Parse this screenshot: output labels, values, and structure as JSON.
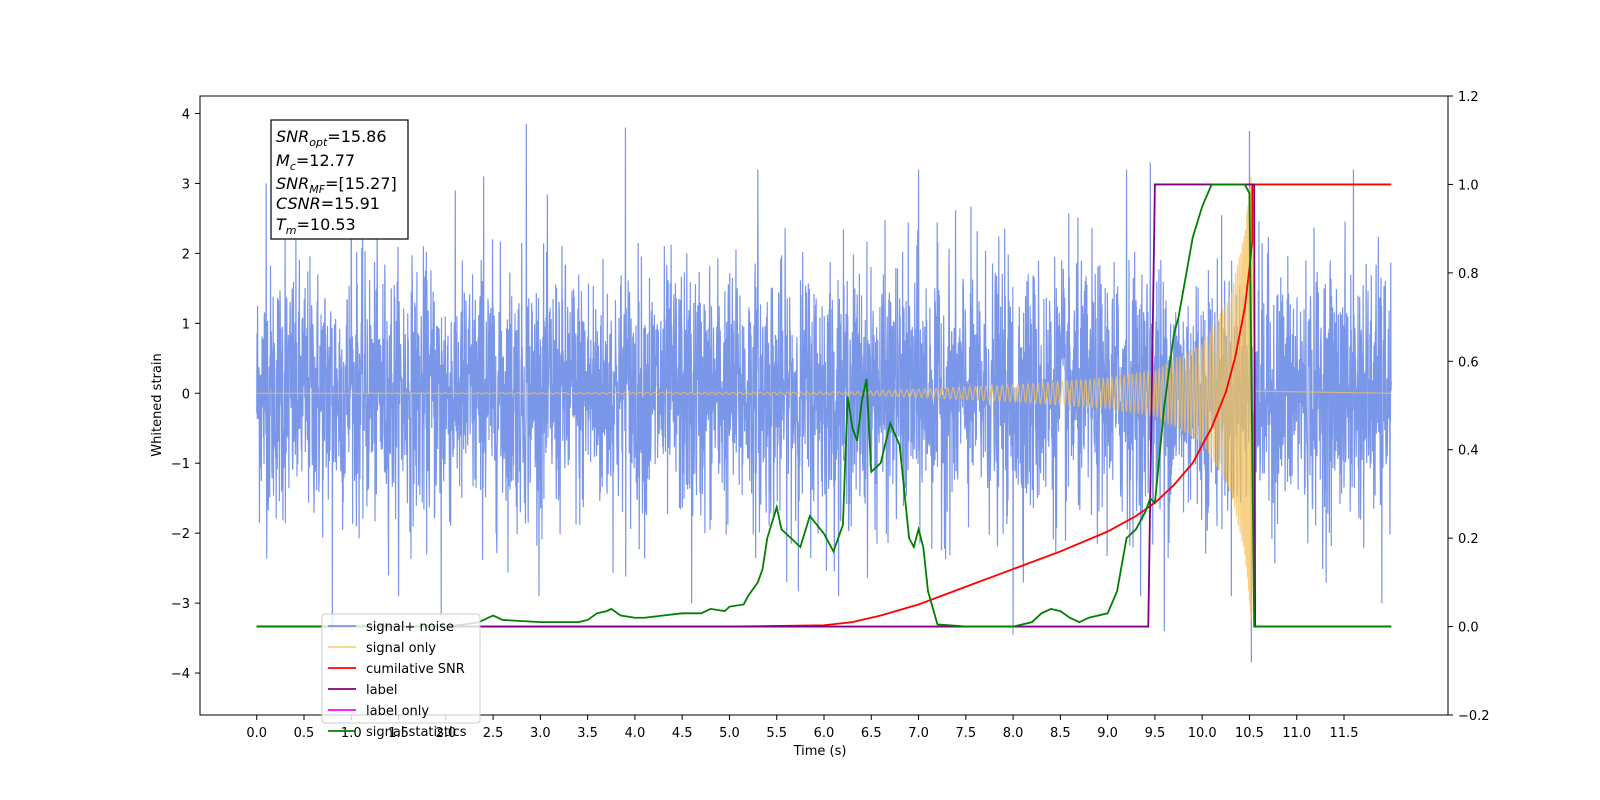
{
  "chart_data": {
    "type": "line",
    "xlabel": "Time (s)",
    "ylabel": "Whitened strain",
    "xlim": [
      -0.6,
      12.6
    ],
    "ylim": [
      -4.6,
      4.25
    ],
    "y2lim": [
      -0.2,
      1.2
    ],
    "x_ticks": [
      0.0,
      0.5,
      1.0,
      1.5,
      2.0,
      2.5,
      3.0,
      3.5,
      4.0,
      4.5,
      5.0,
      5.5,
      6.0,
      6.5,
      7.0,
      7.5,
      8.0,
      8.5,
      9.0,
      9.5,
      10.0,
      10.5,
      11.0,
      11.5
    ],
    "x_tick_labels": [
      "0.0",
      "0.5",
      "1.0",
      "1.5",
      "2.0",
      "2.5",
      "3.0",
      "3.5",
      "4.0",
      "4.5",
      "5.0",
      "5.5",
      "6.0",
      "6.5",
      "7.0",
      "7.5",
      "8.0",
      "8.5",
      "9.0",
      "9.5",
      "10.0",
      "10.5",
      "11.0",
      "11.5"
    ],
    "y_ticks": [
      -4,
      -3,
      -2,
      -1,
      0,
      1,
      2,
      3,
      4
    ],
    "y_tick_labels": [
      "−4",
      "−3",
      "−2",
      "−1",
      "0",
      "1",
      "2",
      "3",
      "4"
    ],
    "y2_ticks": [
      -0.2,
      0.0,
      0.2,
      0.4,
      0.6,
      0.8,
      1.0,
      1.2
    ],
    "y2_tick_labels": [
      "−0.2",
      "0.0",
      "0.2",
      "0.4",
      "0.6",
      "0.8",
      "1.0",
      "1.2"
    ],
    "grid": false,
    "legend_position": "lower-left",
    "annotation": {
      "lines": [
        {
          "sym": "SNR",
          "sub": "opt",
          "value": "=15.86"
        },
        {
          "sym": "M",
          "sub": "c",
          "value": "=12.77"
        },
        {
          "sym": "SNR",
          "sub": "MF",
          "value": "=[15.27]"
        },
        {
          "sym": "CSNR",
          "sub": "",
          "value": "=15.91"
        },
        {
          "sym": "T",
          "sub": "m",
          "value": "=10.53"
        }
      ]
    },
    "series": [
      {
        "name": "signal+ noise",
        "color": "#7a96e8",
        "axis": "left",
        "kind": "noise",
        "x_range": [
          0.0,
          12.0
        ],
        "noise_sd": 0.9,
        "spikes": [
          [
            0.1,
            3.0
          ],
          [
            0.3,
            2.9
          ],
          [
            0.8,
            -3.4
          ],
          [
            1.0,
            3.3
          ],
          [
            1.95,
            -3.2
          ],
          [
            2.4,
            3.1
          ],
          [
            2.85,
            3.85
          ],
          [
            3.9,
            3.8
          ],
          [
            4.6,
            -3.0
          ],
          [
            5.3,
            3.2
          ],
          [
            7.0,
            3.2
          ],
          [
            8.0,
            -3.45
          ],
          [
            9.2,
            3.2
          ],
          [
            9.45,
            3.3
          ],
          [
            9.6,
            -3.4
          ],
          [
            10.5,
            3.75
          ],
          [
            10.52,
            -3.85
          ],
          [
            11.6,
            3.2
          ],
          [
            11.9,
            -3.0
          ]
        ]
      },
      {
        "name": "signal only",
        "color": "#f5c15a",
        "axis": "left",
        "kind": "chirp",
        "x_range": [
          0.0,
          12.0
        ],
        "merger_time": 10.53,
        "amplitude_envelope": [
          [
            0.0,
            0.0
          ],
          [
            6.3,
            0.02
          ],
          [
            7.0,
            0.06
          ],
          [
            8.0,
            0.12
          ],
          [
            9.0,
            0.22
          ],
          [
            9.5,
            0.32
          ],
          [
            10.0,
            0.7
          ],
          [
            10.3,
            1.4
          ],
          [
            10.45,
            2.3
          ],
          [
            10.53,
            3.4
          ],
          [
            10.56,
            0.05
          ],
          [
            12.0,
            0.0
          ]
        ]
      },
      {
        "name": "cumilative SNR",
        "color": "#ff0000",
        "axis": "right",
        "x": [
          0.0,
          5.0,
          6.0,
          6.3,
          6.6,
          7.0,
          7.5,
          8.0,
          8.5,
          9.0,
          9.3,
          9.5,
          9.7,
          9.9,
          10.1,
          10.25,
          10.35,
          10.45,
          10.5,
          10.53,
          10.53,
          12.0
        ],
        "y": [
          0.0,
          0.0,
          0.003,
          0.01,
          0.025,
          0.05,
          0.09,
          0.13,
          0.17,
          0.215,
          0.25,
          0.28,
          0.32,
          0.37,
          0.45,
          0.53,
          0.61,
          0.72,
          0.81,
          0.87,
          1.0,
          1.0
        ]
      },
      {
        "name": "label",
        "color": "#800080",
        "axis": "right",
        "x": [
          0.0,
          9.43,
          9.5,
          10.55,
          10.56,
          12.0
        ],
        "y": [
          0.0,
          0.0,
          1.0,
          1.0,
          0.0,
          0.0
        ]
      },
      {
        "name": "label only",
        "color": "#ff00ff",
        "axis": "right",
        "x": [],
        "y": []
      },
      {
        "name": "signal statistics",
        "color": "#008000",
        "axis": "right",
        "x": [
          0.0,
          0.5,
          1.0,
          1.5,
          2.0,
          2.2,
          2.35,
          2.45,
          2.5,
          2.6,
          3.0,
          3.2,
          3.4,
          3.5,
          3.6,
          3.7,
          3.75,
          3.85,
          4.0,
          4.1,
          4.3,
          4.5,
          4.7,
          4.8,
          4.95,
          5.0,
          5.15,
          5.2,
          5.3,
          5.35,
          5.4,
          5.5,
          5.55,
          5.65,
          5.75,
          5.85,
          6.0,
          6.1,
          6.2,
          6.25,
          6.3,
          6.35,
          6.4,
          6.45,
          6.5,
          6.6,
          6.7,
          6.8,
          6.9,
          6.95,
          7.0,
          7.05,
          7.1,
          7.2,
          7.5,
          8.0,
          8.1,
          8.2,
          8.3,
          8.4,
          8.5,
          8.6,
          8.7,
          8.8,
          9.0,
          9.1,
          9.2,
          9.3,
          9.4,
          9.45,
          9.5,
          9.6,
          9.7,
          9.75,
          9.8,
          9.9,
          10.0,
          10.1,
          10.3,
          10.45,
          10.5,
          10.55,
          12.0
        ],
        "y": [
          0.0,
          0.0,
          0.0,
          0.0,
          0.0,
          0.005,
          0.01,
          0.02,
          0.025,
          0.015,
          0.01,
          0.01,
          0.01,
          0.015,
          0.03,
          0.035,
          0.04,
          0.025,
          0.02,
          0.02,
          0.025,
          0.03,
          0.03,
          0.04,
          0.035,
          0.045,
          0.05,
          0.07,
          0.1,
          0.13,
          0.2,
          0.27,
          0.22,
          0.2,
          0.18,
          0.25,
          0.21,
          0.17,
          0.23,
          0.52,
          0.45,
          0.42,
          0.51,
          0.56,
          0.35,
          0.37,
          0.46,
          0.41,
          0.2,
          0.18,
          0.22,
          0.18,
          0.08,
          0.005,
          0.0,
          0.0,
          0.005,
          0.01,
          0.03,
          0.04,
          0.035,
          0.02,
          0.01,
          0.02,
          0.03,
          0.08,
          0.2,
          0.22,
          0.26,
          0.29,
          0.28,
          0.5,
          0.66,
          0.7,
          0.76,
          0.88,
          0.95,
          1.0,
          1.0,
          1.0,
          0.98,
          0.0,
          0.0
        ]
      }
    ]
  }
}
